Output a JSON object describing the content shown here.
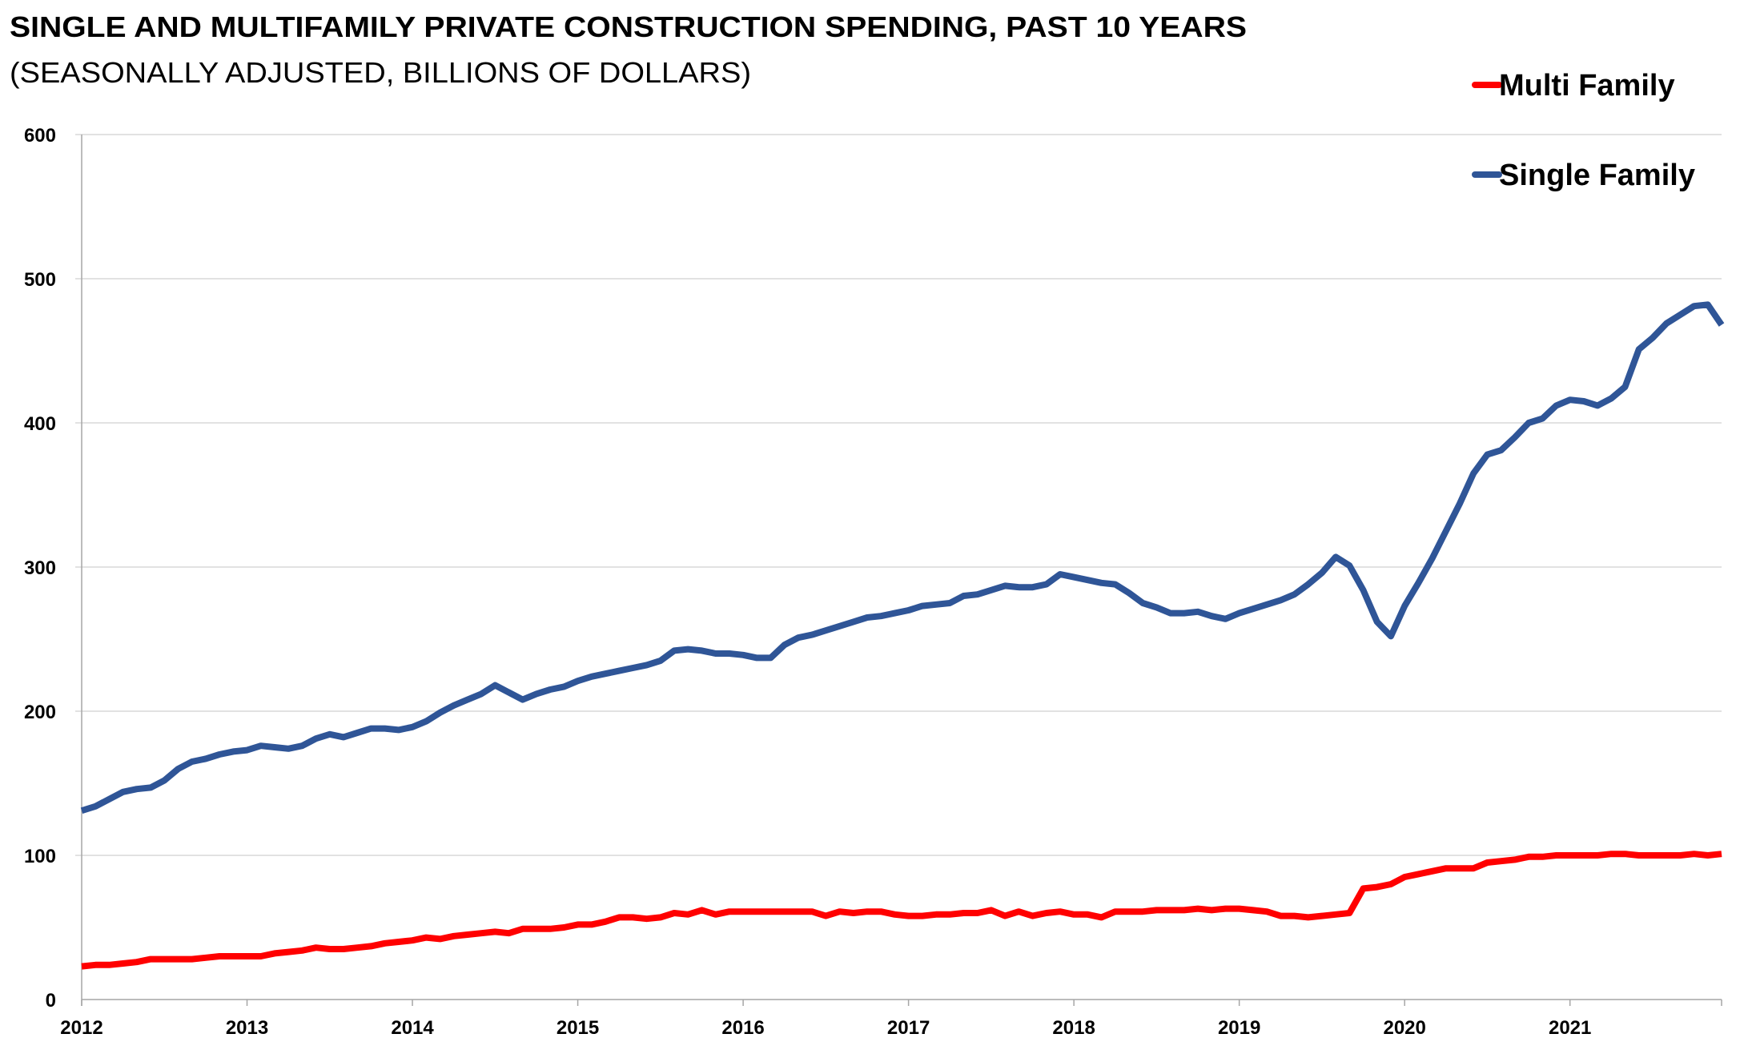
{
  "chart_data": {
    "type": "line",
    "title": "SINGLE AND MULTIFAMILY PRIVATE CONSTRUCTION SPENDING, PAST 10 YEARS",
    "subtitle": "(SEASONALLY ADJUSTED, BILLIONS OF DOLLARS)",
    "xlabel": "",
    "ylabel": "",
    "ylim": [
      0,
      600
    ],
    "yticks": [
      "0",
      "100",
      "200",
      "300",
      "400",
      "500",
      "600"
    ],
    "xticks": [
      "2012",
      "2013",
      "2014",
      "2015",
      "2016",
      "2017",
      "2018",
      "2019",
      "2020",
      "2021"
    ],
    "x_start": "2012-01",
    "x_frequency": "monthly",
    "grid": "horizontal",
    "legend_position": "top-right",
    "series": [
      {
        "name": "Multi Family",
        "color": "#ff0000",
        "values": [
          23,
          24,
          24,
          25,
          26,
          28,
          28,
          28,
          28,
          29,
          30,
          30,
          30,
          30,
          32,
          33,
          34,
          36,
          35,
          35,
          36,
          37,
          39,
          40,
          41,
          43,
          42,
          44,
          45,
          46,
          47,
          46,
          49,
          49,
          49,
          50,
          52,
          52,
          54,
          57,
          57,
          56,
          57,
          60,
          59,
          62,
          59,
          61,
          61,
          61,
          61,
          61,
          61,
          61,
          58,
          61,
          60,
          61,
          61,
          59,
          58,
          58,
          59,
          59,
          60,
          60,
          62,
          58,
          61,
          58,
          60,
          61,
          59,
          59,
          57,
          61,
          61,
          61,
          62,
          62,
          62,
          63,
          62,
          63,
          63,
          62,
          61,
          58,
          58,
          57,
          58,
          59,
          60,
          77,
          78,
          80,
          85,
          87,
          89,
          91,
          91,
          91,
          95,
          96,
          97,
          99,
          99,
          100,
          100,
          100,
          100,
          101,
          101,
          100,
          100,
          100,
          100,
          101,
          100,
          101
        ]
      },
      {
        "name": "Single Family",
        "color": "#2f5597",
        "values": [
          131,
          134,
          139,
          144,
          146,
          147,
          152,
          160,
          165,
          167,
          170,
          172,
          173,
          176,
          175,
          174,
          176,
          181,
          184,
          182,
          185,
          188,
          188,
          187,
          189,
          193,
          199,
          204,
          208,
          212,
          218,
          213,
          208,
          212,
          215,
          217,
          221,
          224,
          226,
          228,
          230,
          232,
          235,
          242,
          243,
          242,
          240,
          240,
          239,
          237,
          237,
          246,
          251,
          253,
          256,
          259,
          262,
          265,
          266,
          268,
          270,
          273,
          274,
          275,
          280,
          281,
          284,
          287,
          286,
          286,
          288,
          295,
          293,
          291,
          289,
          288,
          282,
          275,
          272,
          268,
          268,
          269,
          266,
          264,
          268,
          271,
          274,
          277,
          281,
          288,
          296,
          307,
          301,
          284,
          262,
          252,
          273,
          289,
          306,
          325,
          344,
          365,
          378,
          381,
          390,
          400,
          403,
          412,
          416,
          415,
          412,
          417,
          425,
          451,
          459,
          469,
          475,
          481,
          482,
          468
        ]
      }
    ]
  }
}
